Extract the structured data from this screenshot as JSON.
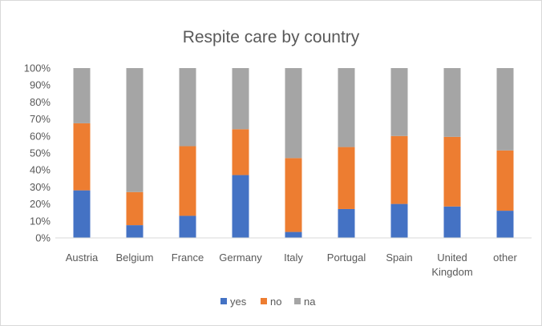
{
  "chart_data": {
    "type": "bar",
    "stacked": "percent",
    "title": "Respite care by country",
    "categories": [
      [
        "Austria"
      ],
      [
        "Belgium"
      ],
      [
        "France"
      ],
      [
        "Germany"
      ],
      [
        "Italy"
      ],
      [
        "Portugal"
      ],
      [
        "Spain"
      ],
      [
        "United",
        "Kingdom"
      ],
      [
        "other"
      ]
    ],
    "series": [
      {
        "name": "yes",
        "color": "#4472c4",
        "values": [
          28,
          7.5,
          13,
          37,
          3.5,
          17,
          20,
          18.5,
          16
        ]
      },
      {
        "name": "no",
        "color": "#ed7d31",
        "values": [
          39.5,
          19.5,
          41,
          27,
          43.5,
          36.5,
          40,
          41,
          35.5
        ]
      },
      {
        "name": "na",
        "color": "#a5a5a5",
        "values": [
          32.5,
          73,
          46,
          36,
          53,
          46.5,
          40,
          40.5,
          48.5
        ]
      }
    ],
    "ylim": [
      0,
      100
    ],
    "yticks": [
      "0%",
      "10%",
      "20%",
      "30%",
      "40%",
      "50%",
      "60%",
      "70%",
      "80%",
      "90%",
      "100%"
    ],
    "xlabel": "",
    "ylabel": "",
    "grid": false,
    "legend": "bottom"
  }
}
